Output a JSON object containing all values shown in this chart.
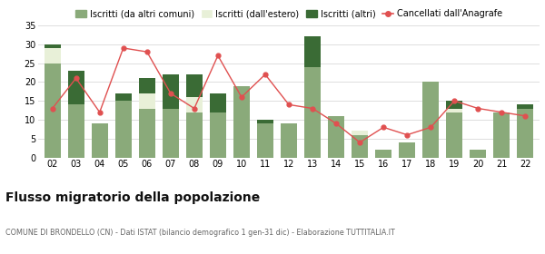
{
  "categories": [
    "02",
    "03",
    "04",
    "05",
    "06",
    "07",
    "08",
    "09",
    "10",
    "11",
    "12",
    "13",
    "14",
    "15",
    "16",
    "17",
    "18",
    "19",
    "20",
    "21",
    "22"
  ],
  "iscritti_altri_comuni": [
    25,
    14,
    9,
    15,
    13,
    13,
    12,
    12,
    19,
    9,
    9,
    24,
    11,
    6,
    2,
    4,
    20,
    12,
    2,
    12,
    13
  ],
  "iscritti_estero": [
    4,
    0,
    0,
    0,
    4,
    0,
    4,
    0,
    0,
    0,
    0,
    0,
    0,
    1,
    0,
    0,
    0,
    1,
    0,
    0,
    0
  ],
  "iscritti_altri": [
    1,
    9,
    0,
    2,
    4,
    9,
    6,
    5,
    0,
    1,
    0,
    8,
    0,
    0,
    0,
    0,
    0,
    2,
    0,
    0,
    1
  ],
  "cancellati": [
    13,
    21,
    12,
    29,
    28,
    17,
    13,
    27,
    16,
    22,
    14,
    13,
    9,
    4,
    8,
    6,
    8,
    15,
    13,
    12,
    11
  ],
  "color_altri_comuni": "#8aaa7a",
  "color_estero": "#e8f0d8",
  "color_altri": "#3a6b35",
  "color_cancellati": "#e05050",
  "title": "Flusso migratorio della popolazione",
  "subtitle": "COMUNE DI BRONDELLO (CN) - Dati ISTAT (bilancio demografico 1 gen-31 dic) - Elaborazione TUTTITALIA.IT",
  "legend_labels": [
    "Iscritti (da altri comuni)",
    "Iscritti (dall'estero)",
    "Iscritti (altri)",
    "Cancellati dall'Anagrafe"
  ],
  "ylim": [
    0,
    35
  ],
  "yticks": [
    0,
    5,
    10,
    15,
    20,
    25,
    30,
    35
  ],
  "background_color": "#ffffff",
  "grid_color": "#dddddd"
}
